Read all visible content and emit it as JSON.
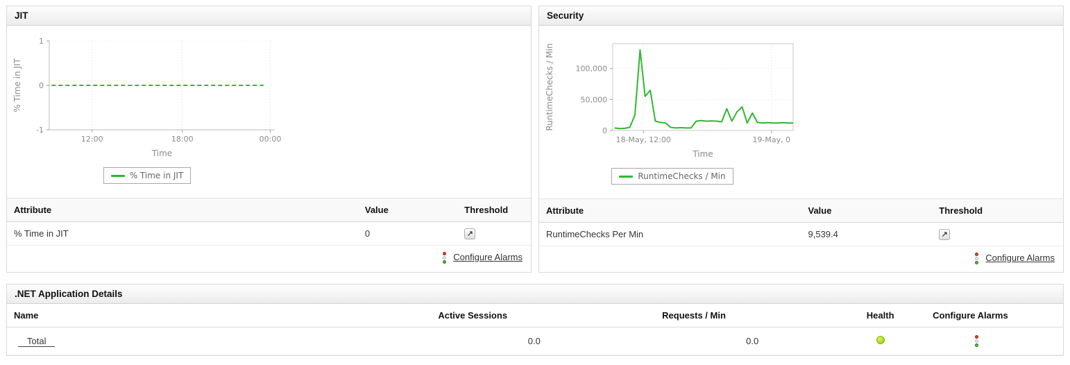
{
  "panels": {
    "jit": {
      "title": "JIT",
      "table": {
        "headers": [
          "Attribute",
          "Value",
          "Threshold"
        ],
        "row": {
          "attribute": "% Time in JIT",
          "value": "0"
        },
        "configure_alarms_label": "Configure Alarms"
      }
    },
    "security": {
      "title": "Security",
      "table": {
        "headers": [
          "Attribute",
          "Value",
          "Threshold"
        ],
        "row": {
          "attribute": "RuntimeChecks Per Min",
          "value": "9,539.4"
        },
        "configure_alarms_label": "Configure Alarms"
      }
    },
    "dotnet": {
      "title": ".NET Application Details",
      "table": {
        "headers": [
          "Name",
          "Active Sessions",
          "Requests / Min",
          "Health",
          "Configure Alarms"
        ],
        "row": {
          "name": "Total",
          "active_sessions": "0.0",
          "requests_per_min": "0.0",
          "health": "up"
        }
      }
    }
  },
  "icons": {
    "threshold_glyph": "↗"
  },
  "colors": {
    "series_green": "#2eb82e",
    "health_up": "#9acd05",
    "alarm_red": "#df4339",
    "alarm_green": "#56b23e"
  },
  "chart_data": [
    {
      "type": "line",
      "title": "JIT",
      "xlabel": "Time",
      "ylabel": "% Time in JIT",
      "ylim": [
        -1,
        1
      ],
      "yticks": [
        {
          "v": 1,
          "label": "1"
        },
        {
          "v": 0,
          "label": "0"
        },
        {
          "v": -1,
          "label": "-1"
        }
      ],
      "xticks": [
        {
          "pos": 0.19,
          "label": "12:00"
        },
        {
          "pos": 0.59,
          "label": "18:00"
        },
        {
          "pos": 0.98,
          "label": "00:00"
        }
      ],
      "box": false,
      "grid": true,
      "legend_position": "bottom",
      "xspan": [
        0.01,
        0.95
      ],
      "layout": {
        "l": 55,
        "r": 12,
        "t": 8,
        "b": 42
      },
      "series": [
        {
          "name": "% Time in JIT",
          "color": "#2eb82e",
          "dash": "6 4",
          "values": [
            0,
            0,
            0,
            0,
            0,
            0,
            0,
            0,
            0,
            0,
            0,
            0,
            0,
            0,
            0,
            0,
            0,
            0,
            0,
            0,
            0,
            0,
            0,
            0,
            0,
            0,
            0,
            0,
            0,
            0,
            0,
            0,
            0,
            0,
            0,
            0,
            0,
            0,
            0,
            0
          ]
        }
      ]
    },
    {
      "type": "line",
      "title": "Security",
      "xlabel": "Time",
      "ylabel": "RuntimeChecks / Min",
      "ylim": [
        0,
        140000
      ],
      "yticks": [
        {
          "v": 100000,
          "label": "100,000"
        },
        {
          "v": 50000,
          "label": "50,000"
        },
        {
          "v": 0,
          "label": "0"
        }
      ],
      "xticks": [
        {
          "pos": 0.17,
          "label": "18-May, 12:00"
        },
        {
          "pos": 0.88,
          "label": "19-May, 0"
        }
      ],
      "box": true,
      "grid": true,
      "legend_position": "bottom",
      "xspan": [
        0.01,
        1.0
      ],
      "layout": {
        "l": 100,
        "r": 12,
        "t": 12,
        "b": 42
      },
      "series": [
        {
          "name": "RuntimeChecks / Min",
          "color": "#2eb82e",
          "dash": "",
          "values": [
            4000,
            3000,
            3500,
            5000,
            25000,
            130000,
            55000,
            65000,
            15000,
            13000,
            12000,
            5000,
            4000,
            4500,
            4000,
            4000,
            15000,
            16000,
            15000,
            15500,
            15000,
            14000,
            35000,
            15000,
            30000,
            38000,
            12000,
            28000,
            13000,
            12000,
            12500,
            12000,
            12000,
            12500,
            12000,
            12000
          ]
        }
      ]
    }
  ]
}
